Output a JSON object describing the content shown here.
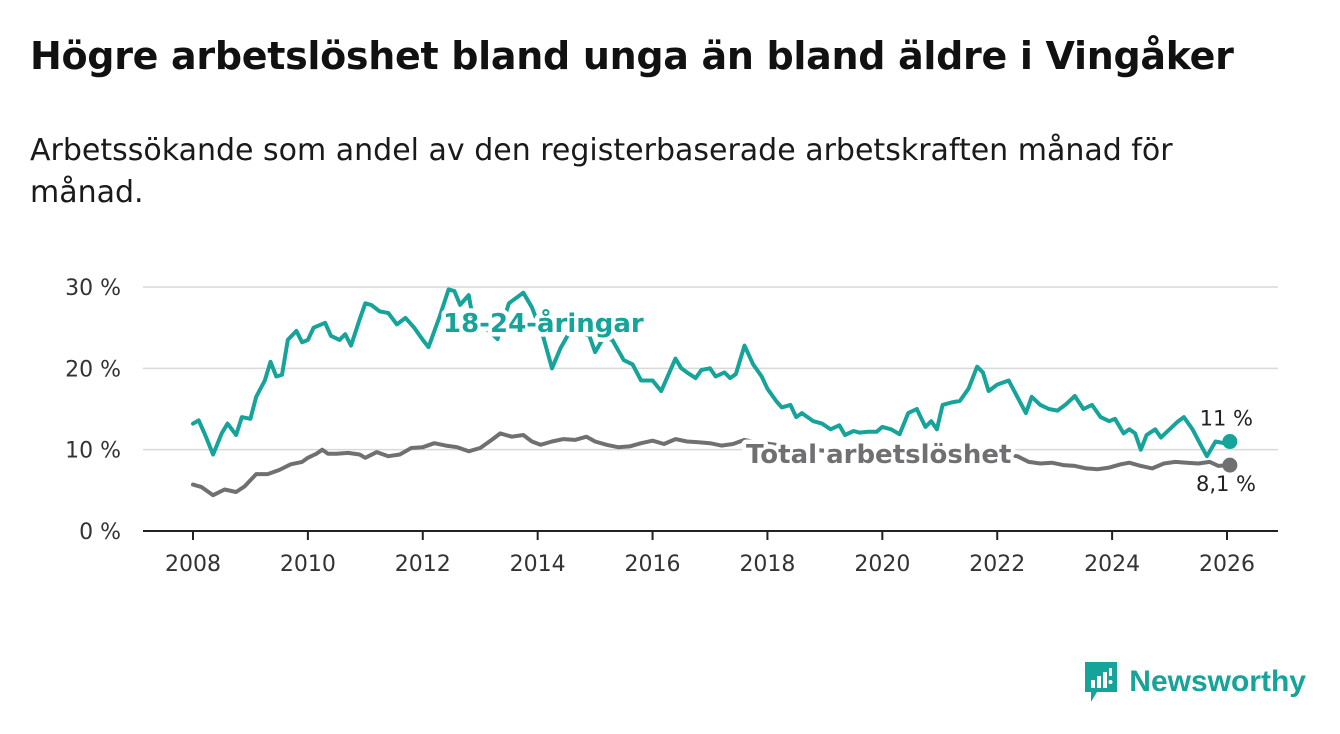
{
  "header": {
    "title": "Högre arbetslöshet bland unga än bland äldre i Vingåker",
    "subtitle": "Arbetssökande som andel av den registerbaserade arbetskraften månad för månad."
  },
  "brand": {
    "name": "Newsworthy",
    "icon": "newsworthy-logo-icon",
    "color": "#16a39a"
  },
  "chart_data": {
    "type": "line",
    "title": "Högre arbetslöshet bland unga än bland äldre i Vingåker",
    "subtitle": "Arbetssökande som andel av den registerbaserade arbetskraften månad för månad.",
    "xlabel": "",
    "ylabel": "",
    "xlim": [
      2007.5,
      2027
    ],
    "ylim": [
      0,
      30
    ],
    "x_ticks": [
      2008,
      2010,
      2012,
      2014,
      2016,
      2018,
      2020,
      2022,
      2024,
      2026
    ],
    "x_tick_labels": [
      "2008",
      "2010",
      "2012",
      "2014",
      "2016",
      "2018",
      "2020",
      "2022",
      "2024",
      "2026"
    ],
    "y_ticks": [
      0,
      10,
      20,
      30
    ],
    "y_tick_labels": [
      "0 %",
      "10 %",
      "20 %",
      "30 %"
    ],
    "grid": "horizontal",
    "series": [
      {
        "name": "18-24-åringar",
        "color": "#16a39a",
        "end_label": "11 %",
        "points": [
          [
            2008.0,
            13.2
          ],
          [
            2008.1,
            13.6
          ],
          [
            2008.2,
            12.0
          ],
          [
            2008.35,
            9.4
          ],
          [
            2008.5,
            12.0
          ],
          [
            2008.6,
            13.2
          ],
          [
            2008.75,
            11.8
          ],
          [
            2008.85,
            14.0
          ],
          [
            2009.0,
            13.8
          ],
          [
            2009.1,
            16.5
          ],
          [
            2009.25,
            18.5
          ],
          [
            2009.35,
            20.8
          ],
          [
            2009.45,
            19.0
          ],
          [
            2009.55,
            19.2
          ],
          [
            2009.65,
            23.5
          ],
          [
            2009.8,
            24.6
          ],
          [
            2009.9,
            23.2
          ],
          [
            2010.0,
            23.5
          ],
          [
            2010.1,
            25.0
          ],
          [
            2010.3,
            25.6
          ],
          [
            2010.4,
            24.0
          ],
          [
            2010.55,
            23.5
          ],
          [
            2010.65,
            24.2
          ],
          [
            2010.75,
            22.8
          ],
          [
            2010.9,
            26.0
          ],
          [
            2011.0,
            28.0
          ],
          [
            2011.1,
            27.8
          ],
          [
            2011.25,
            27.0
          ],
          [
            2011.4,
            26.8
          ],
          [
            2011.55,
            25.4
          ],
          [
            2011.7,
            26.2
          ],
          [
            2011.85,
            25.0
          ],
          [
            2012.0,
            23.5
          ],
          [
            2012.1,
            22.6
          ],
          [
            2012.3,
            26.5
          ],
          [
            2012.45,
            29.7
          ],
          [
            2012.55,
            29.5
          ],
          [
            2012.65,
            27.8
          ],
          [
            2012.8,
            29.0
          ],
          [
            2012.9,
            25.0
          ],
          [
            2013.0,
            25.6
          ],
          [
            2013.15,
            24.6
          ],
          [
            2013.3,
            23.6
          ],
          [
            2013.5,
            28.0
          ],
          [
            2013.75,
            29.3
          ],
          [
            2013.9,
            27.5
          ],
          [
            2014.1,
            23.8
          ],
          [
            2014.25,
            20.0
          ],
          [
            2014.4,
            22.5
          ],
          [
            2014.6,
            25.0
          ],
          [
            2014.9,
            24.0
          ],
          [
            2015.0,
            22.0
          ],
          [
            2015.15,
            23.8
          ],
          [
            2015.3,
            23.5
          ],
          [
            2015.5,
            21.0
          ],
          [
            2015.65,
            20.5
          ],
          [
            2015.8,
            18.5
          ],
          [
            2016.0,
            18.5
          ],
          [
            2016.15,
            17.2
          ],
          [
            2016.25,
            18.8
          ],
          [
            2016.4,
            21.2
          ],
          [
            2016.5,
            20.0
          ],
          [
            2016.6,
            19.5
          ],
          [
            2016.75,
            18.8
          ],
          [
            2016.85,
            19.8
          ],
          [
            2017.0,
            20.0
          ],
          [
            2017.1,
            19.0
          ],
          [
            2017.25,
            19.5
          ],
          [
            2017.35,
            18.8
          ],
          [
            2017.45,
            19.3
          ],
          [
            2017.6,
            22.8
          ],
          [
            2017.75,
            20.5
          ],
          [
            2017.9,
            19.0
          ],
          [
            2018.0,
            17.5
          ],
          [
            2018.15,
            16.0
          ],
          [
            2018.25,
            15.2
          ],
          [
            2018.4,
            15.5
          ],
          [
            2018.5,
            14.0
          ],
          [
            2018.6,
            14.5
          ],
          [
            2018.8,
            13.5
          ],
          [
            2018.95,
            13.2
          ],
          [
            2019.1,
            12.5
          ],
          [
            2019.25,
            13.0
          ],
          [
            2019.35,
            11.8
          ],
          [
            2019.5,
            12.3
          ],
          [
            2019.6,
            12.1
          ],
          [
            2019.75,
            12.2
          ],
          [
            2019.9,
            12.2
          ],
          [
            2020.0,
            12.8
          ],
          [
            2020.15,
            12.5
          ],
          [
            2020.3,
            11.9
          ],
          [
            2020.45,
            14.5
          ],
          [
            2020.6,
            15.0
          ],
          [
            2020.75,
            12.8
          ],
          [
            2020.85,
            13.5
          ],
          [
            2020.95,
            12.5
          ],
          [
            2021.05,
            15.5
          ],
          [
            2021.2,
            15.8
          ],
          [
            2021.35,
            16.0
          ],
          [
            2021.5,
            17.5
          ],
          [
            2021.65,
            20.2
          ],
          [
            2021.75,
            19.5
          ],
          [
            2021.85,
            17.2
          ],
          [
            2022.0,
            18.0
          ],
          [
            2022.2,
            18.5
          ],
          [
            2022.35,
            16.5
          ],
          [
            2022.5,
            14.5
          ],
          [
            2022.6,
            16.5
          ],
          [
            2022.75,
            15.5
          ],
          [
            2022.9,
            15.0
          ],
          [
            2023.05,
            14.8
          ],
          [
            2023.2,
            15.6
          ],
          [
            2023.35,
            16.6
          ],
          [
            2023.5,
            15.0
          ],
          [
            2023.65,
            15.5
          ],
          [
            2023.8,
            14.0
          ],
          [
            2023.95,
            13.5
          ],
          [
            2024.05,
            13.8
          ],
          [
            2024.2,
            12.0
          ],
          [
            2024.3,
            12.5
          ],
          [
            2024.4,
            12.0
          ],
          [
            2024.5,
            10.0
          ],
          [
            2024.6,
            11.8
          ],
          [
            2024.75,
            12.5
          ],
          [
            2024.85,
            11.5
          ],
          [
            2025.0,
            12.5
          ],
          [
            2025.15,
            13.5
          ],
          [
            2025.25,
            14.0
          ],
          [
            2025.4,
            12.5
          ],
          [
            2025.55,
            10.5
          ],
          [
            2025.65,
            9.2
          ],
          [
            2025.8,
            11.0
          ],
          [
            2025.95,
            10.8
          ],
          [
            2026.05,
            11.0
          ]
        ]
      },
      {
        "name": "Total arbetslöshet",
        "color": "#706f72",
        "end_label": "8,1 %",
        "points": [
          [
            2008.0,
            5.7
          ],
          [
            2008.15,
            5.4
          ],
          [
            2008.35,
            4.4
          ],
          [
            2008.55,
            5.1
          ],
          [
            2008.75,
            4.8
          ],
          [
            2008.9,
            5.5
          ],
          [
            2009.1,
            7.0
          ],
          [
            2009.3,
            7.0
          ],
          [
            2009.5,
            7.5
          ],
          [
            2009.7,
            8.2
          ],
          [
            2009.9,
            8.5
          ],
          [
            2010.0,
            9.0
          ],
          [
            2010.15,
            9.5
          ],
          [
            2010.25,
            10.0
          ],
          [
            2010.35,
            9.5
          ],
          [
            2010.5,
            9.5
          ],
          [
            2010.7,
            9.6
          ],
          [
            2010.9,
            9.4
          ],
          [
            2011.0,
            9.0
          ],
          [
            2011.2,
            9.7
          ],
          [
            2011.4,
            9.2
          ],
          [
            2011.6,
            9.4
          ],
          [
            2011.8,
            10.2
          ],
          [
            2012.0,
            10.3
          ],
          [
            2012.2,
            10.8
          ],
          [
            2012.4,
            10.5
          ],
          [
            2012.6,
            10.3
          ],
          [
            2012.8,
            9.8
          ],
          [
            2013.0,
            10.2
          ],
          [
            2013.2,
            11.2
          ],
          [
            2013.35,
            12.0
          ],
          [
            2013.55,
            11.6
          ],
          [
            2013.75,
            11.8
          ],
          [
            2013.9,
            11.0
          ],
          [
            2014.05,
            10.6
          ],
          [
            2014.25,
            11.0
          ],
          [
            2014.45,
            11.3
          ],
          [
            2014.65,
            11.2
          ],
          [
            2014.85,
            11.6
          ],
          [
            2015.0,
            11.0
          ],
          [
            2015.2,
            10.6
          ],
          [
            2015.4,
            10.3
          ],
          [
            2015.6,
            10.4
          ],
          [
            2015.8,
            10.8
          ],
          [
            2016.0,
            11.1
          ],
          [
            2016.2,
            10.7
          ],
          [
            2016.4,
            11.3
          ],
          [
            2016.6,
            11.0
          ],
          [
            2016.8,
            10.9
          ],
          [
            2017.0,
            10.8
          ],
          [
            2017.2,
            10.5
          ],
          [
            2017.4,
            10.7
          ],
          [
            2017.6,
            11.2
          ],
          [
            2017.8,
            10.9
          ],
          [
            2017.95,
            10.8
          ],
          [
            2018.15,
            10.6
          ],
          [
            2018.35,
            10.4
          ],
          [
            2018.55,
            10.2
          ],
          [
            2018.75,
            10.0
          ],
          [
            2018.95,
            9.9
          ],
          [
            2019.15,
            9.8
          ],
          [
            2019.35,
            9.6
          ],
          [
            2019.55,
            9.8
          ],
          [
            2019.75,
            9.7
          ],
          [
            2019.95,
            9.6
          ],
          [
            2020.15,
            9.5
          ],
          [
            2020.35,
            9.6
          ],
          [
            2020.55,
            9.8
          ],
          [
            2020.75,
            10.0
          ],
          [
            2020.95,
            10.2
          ],
          [
            2021.15,
            10.0
          ],
          [
            2021.35,
            9.8
          ],
          [
            2021.55,
            9.6
          ],
          [
            2021.75,
            9.5
          ],
          [
            2021.95,
            9.4
          ],
          [
            2022.15,
            9.3
          ],
          [
            2022.35,
            9.2
          ],
          [
            2022.55,
            8.5
          ],
          [
            2022.75,
            8.3
          ],
          [
            2022.95,
            8.4
          ],
          [
            2023.15,
            8.1
          ],
          [
            2023.35,
            8.0
          ],
          [
            2023.55,
            7.7
          ],
          [
            2023.75,
            7.6
          ],
          [
            2023.95,
            7.8
          ],
          [
            2024.15,
            8.2
          ],
          [
            2024.3,
            8.4
          ],
          [
            2024.5,
            8.0
          ],
          [
            2024.7,
            7.7
          ],
          [
            2024.9,
            8.3
          ],
          [
            2025.1,
            8.5
          ],
          [
            2025.3,
            8.4
          ],
          [
            2025.5,
            8.3
          ],
          [
            2025.7,
            8.5
          ],
          [
            2025.85,
            8.0
          ],
          [
            2026.05,
            8.1
          ]
        ]
      }
    ]
  }
}
